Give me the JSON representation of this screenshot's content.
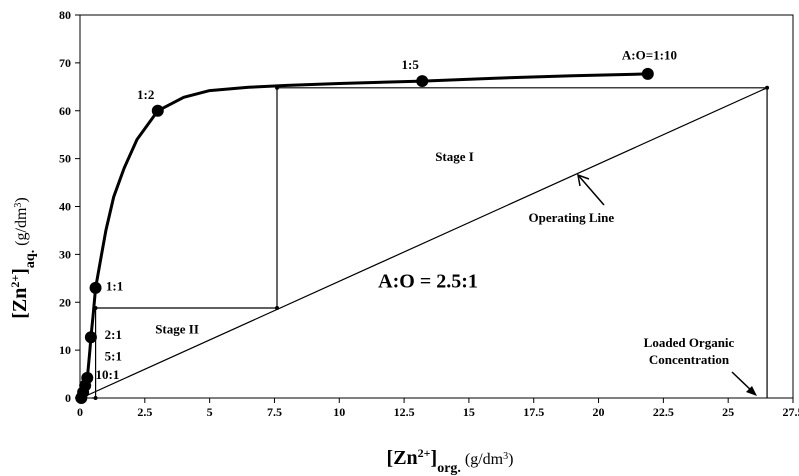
{
  "chart_data": {
    "type": "line",
    "title": "",
    "xlabel": {
      "base": "[Zn",
      "sup": "2+",
      "close": "]",
      "sub": "org.",
      "unit_pre": " (g/dm",
      "unit_sup": "3",
      "unit_post": ")"
    },
    "ylabel": {
      "base": "[Zn",
      "sup": "2+",
      "close": "]",
      "sub": "aq.",
      "unit_pre": " (g/dm",
      "unit_sup": "3",
      "unit_post": ")"
    },
    "xlim": [
      0,
      27.5
    ],
    "ylim": [
      0,
      80
    ],
    "xticks": [
      0,
      2.5,
      5,
      7.5,
      10,
      12.5,
      15,
      17.5,
      20,
      22.5,
      25,
      27.5
    ],
    "xtick_labels": [
      "0",
      "2.5",
      "5",
      "7.5",
      "10",
      "12.5",
      "15",
      "17.5",
      "20",
      "22.5",
      "25",
      "27.5"
    ],
    "yticks": [
      0,
      10,
      20,
      30,
      40,
      50,
      60,
      70,
      80
    ],
    "ytick_labels": [
      "0",
      "10",
      "20",
      "30",
      "40",
      "50",
      "60",
      "70",
      "80"
    ],
    "grid": false,
    "series": [
      {
        "kind": "equilibrium-curve",
        "curve": [
          [
            0.05,
            0
          ],
          [
            0.12,
            1.2
          ],
          [
            0.2,
            2.6
          ],
          [
            0.28,
            4.2
          ],
          [
            0.33,
            7
          ],
          [
            0.38,
            10
          ],
          [
            0.42,
            12.7
          ],
          [
            0.5,
            17
          ],
          [
            0.6,
            23
          ],
          [
            0.8,
            29
          ],
          [
            1.0,
            35
          ],
          [
            1.3,
            42
          ],
          [
            1.7,
            48
          ],
          [
            2.2,
            54
          ],
          [
            3.0,
            60
          ],
          [
            4.0,
            62.8
          ],
          [
            5.0,
            64.2
          ],
          [
            6.5,
            64.9
          ],
          [
            8.0,
            65.3
          ],
          [
            10,
            65.7
          ],
          [
            13.2,
            66.2
          ],
          [
            16,
            66.8
          ],
          [
            19,
            67.3
          ],
          [
            21.9,
            67.7
          ]
        ],
        "points": [
          [
            0.05,
            0
          ],
          [
            0.12,
            1.2
          ],
          [
            0.2,
            2.6
          ],
          [
            0.28,
            4.2
          ],
          [
            0.42,
            12.7
          ],
          [
            0.6,
            23
          ],
          [
            3.0,
            60
          ],
          [
            13.2,
            66.2
          ],
          [
            21.9,
            67.7
          ]
        ]
      },
      {
        "kind": "operating-line",
        "x": [
          0.05,
          26.5
        ],
        "y": [
          0,
          64.8
        ]
      },
      {
        "kind": "stages",
        "x": [
          26.5,
          7.6,
          7.6,
          0.6,
          0.6,
          0.45
        ],
        "y": [
          64.8,
          64.8,
          18.8,
          18.8,
          0,
          0
        ],
        "points": [
          [
            7.6,
            64.8
          ],
          [
            26.5,
            64.8
          ],
          [
            7.6,
            18.8
          ],
          [
            0.6,
            18.8
          ],
          [
            0.6,
            0
          ]
        ]
      },
      {
        "kind": "loaded-organic-drop",
        "x": [
          26.5,
          26.5
        ],
        "y": [
          64.8,
          0
        ]
      }
    ],
    "annotations": {
      "ratio_labels": [
        {
          "text": "A:O=1:10",
          "x": 20.9,
          "y": 70.7
        },
        {
          "text": "1:5",
          "x": 12.4,
          "y": 68.7
        },
        {
          "text": "1:2",
          "x": 2.2,
          "y": 62.5
        },
        {
          "text": "1:1",
          "x": 1.0,
          "y": 22.5
        },
        {
          "text": "2:1",
          "x": 0.95,
          "y": 12.3
        },
        {
          "text": "5:1",
          "x": 0.95,
          "y": 7.8
        },
        {
          "text": "10:1",
          "x": 0.6,
          "y": 4.0
        }
      ],
      "stage_labels": [
        {
          "text": "Stage I",
          "x": 13.7,
          "y": 49.5
        },
        {
          "text": "Stage II",
          "x": 2.9,
          "y": 13.5
        }
      ],
      "operating_line_label": {
        "text": "Operating Line",
        "x": 17.3,
        "y": 36.8
      },
      "ratio_text": {
        "text": "A:O = 2.5:1",
        "x": 11.5,
        "y": 23.1
      },
      "loaded_organic_label": {
        "text": [
          "Loaded Organic",
          "Concentration"
        ]
      }
    }
  }
}
